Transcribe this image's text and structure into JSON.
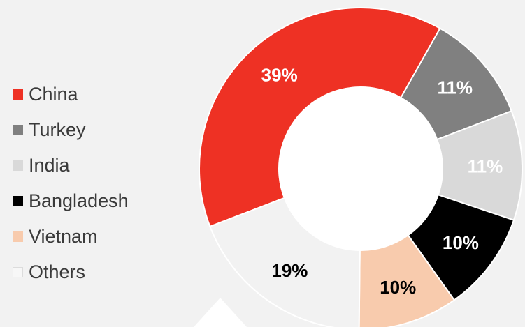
{
  "chart_data": {
    "type": "pie",
    "donut": true,
    "title": "",
    "categories": [
      "China",
      "Turkey",
      "India",
      "Bangladesh",
      "Vietnam",
      "Others"
    ],
    "values": [
      39,
      11,
      11,
      10,
      10,
      19
    ],
    "value_labels": [
      "39%",
      "11%",
      "11%",
      "10%",
      "10%",
      "19%"
    ],
    "colors": [
      "#ee3124",
      "#808080",
      "#d9d9d9",
      "#000000",
      "#f8cbad",
      "#f2f2f2"
    ],
    "label_colors": [
      "#ffffff",
      "#ffffff",
      "#ffffff",
      "#ffffff",
      "#000000",
      "#000000"
    ],
    "legend_position": "left"
  }
}
